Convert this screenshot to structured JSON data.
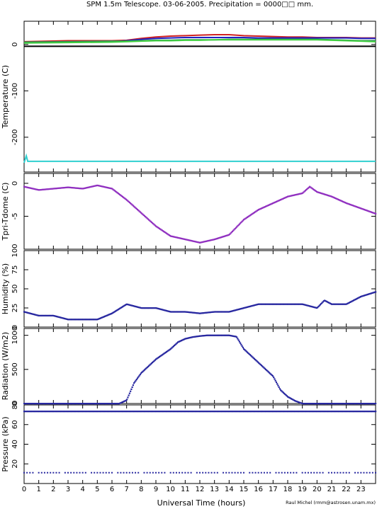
{
  "title": "SPM 1.5m Telescope. 03-06-2005. Precipitation = 0000□□ mm.",
  "xlabel": "Universal Time (hours)",
  "credit": "Raul Michel (rmm@astrosen.unam.mx)",
  "chart_data": [
    {
      "type": "line",
      "name": "temperature",
      "ylabel": "Temperature (C)",
      "xlim": [
        0,
        24
      ],
      "ylim": [
        -275,
        50
      ],
      "yticks": [
        0,
        -100,
        -200
      ],
      "xticks": [
        0,
        1,
        2,
        3,
        4,
        5,
        6,
        7,
        8,
        9,
        10,
        11,
        12,
        13,
        14,
        15,
        16,
        17,
        18,
        19,
        20,
        21,
        22,
        23
      ],
      "series": [
        {
          "color": "#d02020",
          "x": [
            0,
            3,
            6,
            7,
            8,
            9,
            10,
            11,
            12,
            13,
            14,
            15,
            16,
            17,
            18,
            19,
            20,
            21,
            22,
            23,
            24
          ],
          "y": [
            6,
            8,
            8,
            9,
            13,
            16,
            18,
            19,
            20,
            21,
            21,
            19,
            18,
            17,
            16,
            16,
            15,
            15,
            15,
            14,
            14
          ]
        },
        {
          "color": "#2020c0",
          "x": [
            0,
            3,
            6,
            7,
            8,
            9,
            10,
            11,
            12,
            13,
            14,
            15,
            16,
            17,
            18,
            19,
            20,
            21,
            22,
            23,
            24
          ],
          "y": [
            4,
            5,
            6,
            8,
            11,
            13,
            14,
            15,
            15,
            15,
            15,
            15,
            14,
            14,
            14,
            14,
            14,
            14,
            14,
            13,
            13
          ]
        },
        {
          "color": "#2e8b57",
          "x": [
            0,
            3,
            6,
            7,
            8,
            9,
            10,
            11,
            12,
            13,
            14,
            15,
            16,
            17,
            18,
            19,
            20,
            21,
            22,
            23,
            24
          ],
          "y": [
            5,
            6,
            7,
            7,
            8,
            9,
            9,
            10,
            10,
            10,
            11,
            11,
            11,
            11,
            11,
            11,
            11,
            10,
            9,
            8,
            8
          ]
        },
        {
          "color": "#40d040",
          "x": [
            0,
            3,
            6,
            7,
            8,
            9,
            10,
            11,
            12,
            13,
            14,
            15,
            16,
            17,
            18,
            19,
            20,
            21,
            22,
            23,
            24
          ],
          "y": [
            3,
            4,
            5,
            6,
            7,
            8,
            8,
            9,
            9,
            10,
            10,
            10,
            10,
            10,
            10,
            10,
            10,
            9,
            8,
            7,
            6
          ]
        },
        {
          "color": "#000000",
          "x": [
            0,
            24
          ],
          "y": [
            -4,
            -4
          ]
        },
        {
          "color": "#30d0d0",
          "x": [
            0,
            0.15,
            0.25,
            24
          ],
          "y": [
            -255,
            -240,
            -252,
            -252
          ]
        }
      ]
    },
    {
      "type": "scatter",
      "name": "tpri-tdome",
      "ylabel": "Tpri-Tdome (C)",
      "xlim": [
        0,
        24
      ],
      "ylim": [
        -10,
        1.5
      ],
      "yticks": [
        0,
        -5
      ],
      "color": "#9030c0",
      "x": [
        0,
        1,
        2,
        3,
        4,
        5,
        6,
        7,
        8,
        9,
        10,
        11,
        12,
        13,
        14,
        15,
        16,
        17,
        18,
        19,
        19.5,
        20,
        21,
        22,
        23,
        24
      ],
      "y": [
        -0.5,
        -1,
        -0.8,
        -0.6,
        -0.8,
        -0.3,
        -0.8,
        -2.5,
        -4.5,
        -6.5,
        -8,
        -8.5,
        -9,
        -8.5,
        -7.8,
        -5.5,
        -4,
        -3,
        -2,
        -1.5,
        -0.5,
        -1.3,
        -2,
        -3,
        -3.8,
        -4.6
      ]
    },
    {
      "type": "scatter",
      "name": "humidity",
      "ylabel": "Humidity (%)",
      "xlim": [
        0,
        24
      ],
      "ylim": [
        0,
        100
      ],
      "yticks": [
        0,
        25,
        50,
        75,
        100
      ],
      "color": "#2828a0",
      "x": [
        0,
        1,
        2,
        3,
        4,
        5,
        6,
        7,
        8,
        9,
        10,
        11,
        12,
        13,
        14,
        15,
        16,
        17,
        18,
        19,
        20,
        20.5,
        21,
        22,
        23,
        24
      ],
      "y": [
        20,
        15,
        15,
        10,
        10,
        10,
        18,
        30,
        25,
        25,
        20,
        20,
        18,
        20,
        20,
        25,
        30,
        30,
        30,
        30,
        25,
        35,
        30,
        30,
        40,
        46
      ]
    },
    {
      "type": "scatter",
      "name": "radiation",
      "ylabel": "Radiation (W/m2)",
      "xlim": [
        0,
        24
      ],
      "ylim": [
        0,
        1100
      ],
      "yticks": [
        0,
        500,
        1000
      ],
      "color": "#2828a0",
      "x": [
        0,
        6.5,
        7,
        7.5,
        8,
        9,
        10,
        10.5,
        11,
        11.5,
        12,
        12.5,
        13,
        14,
        14.5,
        15,
        15.5,
        16,
        17,
        17.5,
        18,
        18.5,
        19,
        20,
        24
      ],
      "y": [
        0,
        0,
        50,
        300,
        450,
        650,
        800,
        900,
        950,
        975,
        990,
        1000,
        1000,
        1000,
        980,
        800,
        700,
        600,
        400,
        200,
        100,
        40,
        0,
        0,
        0
      ]
    },
    {
      "type": "scatter",
      "name": "pressure",
      "ylabel": "Pressure (kPa)",
      "xlim": [
        0,
        24
      ],
      "ylim": [
        0,
        80
      ],
      "yticks": [
        20,
        40,
        60,
        80
      ],
      "color": "#2828a0",
      "x": [
        0,
        24
      ],
      "y": [
        73.5,
        73.5
      ],
      "low_x": [
        0,
        24
      ],
      "low_y": [
        11,
        11
      ]
    }
  ]
}
